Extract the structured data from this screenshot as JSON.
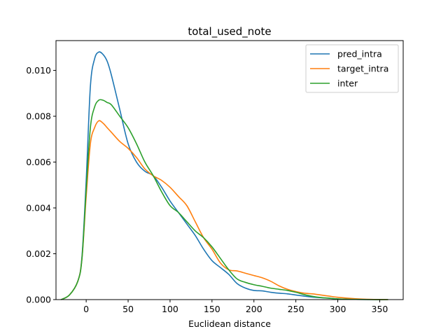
{
  "chart_data": {
    "type": "line",
    "title": "total_used_note",
    "xlabel": "Euclidean distance",
    "ylabel": "",
    "xlim": [
      -36,
      378
    ],
    "ylim": [
      0,
      0.0113
    ],
    "xticks": [
      0,
      50,
      100,
      150,
      200,
      250,
      300,
      350
    ],
    "xtick_labels": [
      "0",
      "50",
      "100",
      "150",
      "200",
      "250",
      "300",
      "350"
    ],
    "yticks": [
      0,
      0.002,
      0.004,
      0.006,
      0.008,
      0.01
    ],
    "ytick_labels": [
      "0.000",
      "0.002",
      "0.004",
      "0.006",
      "0.008",
      "0.010"
    ],
    "grid": false,
    "legend_position": "top-right",
    "series": [
      {
        "name": "pred_intra",
        "color": "#1f77b4",
        "x": [
          -30,
          -20,
          -10,
          -5,
          0,
          5,
          10,
          15,
          20,
          25,
          30,
          40,
          50,
          60,
          70,
          80,
          90,
          100,
          110,
          120,
          130,
          140,
          150,
          160,
          170,
          180,
          190,
          200,
          210,
          220,
          230,
          240,
          250,
          260,
          270,
          280,
          290,
          300,
          320,
          340,
          360
        ],
        "y": [
          0.0,
          0.0002,
          0.0008,
          0.0019,
          0.0052,
          0.0093,
          0.0105,
          0.0108,
          0.0107,
          0.0104,
          0.0098,
          0.0083,
          0.0068,
          0.006,
          0.0056,
          0.0054,
          0.0049,
          0.0043,
          0.0038,
          0.0033,
          0.0028,
          0.0022,
          0.0017,
          0.0014,
          0.0011,
          0.0007,
          0.0005,
          0.0004,
          0.00038,
          0.00032,
          0.00028,
          0.00025,
          0.0002,
          0.00015,
          0.00011,
          8e-05,
          6e-05,
          3e-05,
          1e-05,
          0.0,
          0.0
        ]
      },
      {
        "name": "target_intra",
        "color": "#ff7f0e",
        "x": [
          -30,
          -20,
          -10,
          -5,
          0,
          5,
          10,
          15,
          20,
          25,
          30,
          40,
          50,
          60,
          70,
          80,
          90,
          100,
          110,
          120,
          130,
          140,
          150,
          160,
          170,
          180,
          190,
          200,
          210,
          220,
          230,
          240,
          250,
          260,
          270,
          280,
          290,
          300,
          320,
          340,
          360
        ],
        "y": [
          0.0,
          0.0002,
          0.0008,
          0.0018,
          0.0045,
          0.0068,
          0.0075,
          0.0078,
          0.0077,
          0.0075,
          0.0073,
          0.0069,
          0.0066,
          0.0062,
          0.0057,
          0.0054,
          0.0052,
          0.0049,
          0.0045,
          0.0041,
          0.0034,
          0.0027,
          0.0022,
          0.0016,
          0.0013,
          0.00125,
          0.00115,
          0.00105,
          0.00095,
          0.0008,
          0.0006,
          0.00045,
          0.00035,
          0.00028,
          0.00025,
          0.0002,
          0.00015,
          0.0001,
          4e-05,
          1e-05,
          0.0
        ]
      },
      {
        "name": "inter",
        "color": "#2ca02c",
        "x": [
          -30,
          -20,
          -10,
          -5,
          0,
          5,
          10,
          15,
          20,
          25,
          30,
          40,
          50,
          60,
          70,
          80,
          90,
          100,
          110,
          120,
          130,
          140,
          150,
          160,
          170,
          180,
          190,
          200,
          210,
          220,
          230,
          240,
          250,
          260,
          270,
          280,
          290,
          300,
          320,
          340,
          360
        ],
        "y": [
          0.0,
          0.0002,
          0.0008,
          0.0018,
          0.0048,
          0.0075,
          0.0084,
          0.0087,
          0.0087,
          0.0086,
          0.0085,
          0.008,
          0.0075,
          0.0068,
          0.006,
          0.0054,
          0.0047,
          0.0041,
          0.0038,
          0.0034,
          0.003,
          0.0027,
          0.0023,
          0.0018,
          0.0013,
          0.0009,
          0.00075,
          0.00065,
          0.00058,
          0.0005,
          0.00045,
          0.0004,
          0.00032,
          0.00022,
          0.00014,
          9e-05,
          6e-05,
          3e-05,
          1e-05,
          0.0,
          0.0
        ]
      }
    ]
  }
}
